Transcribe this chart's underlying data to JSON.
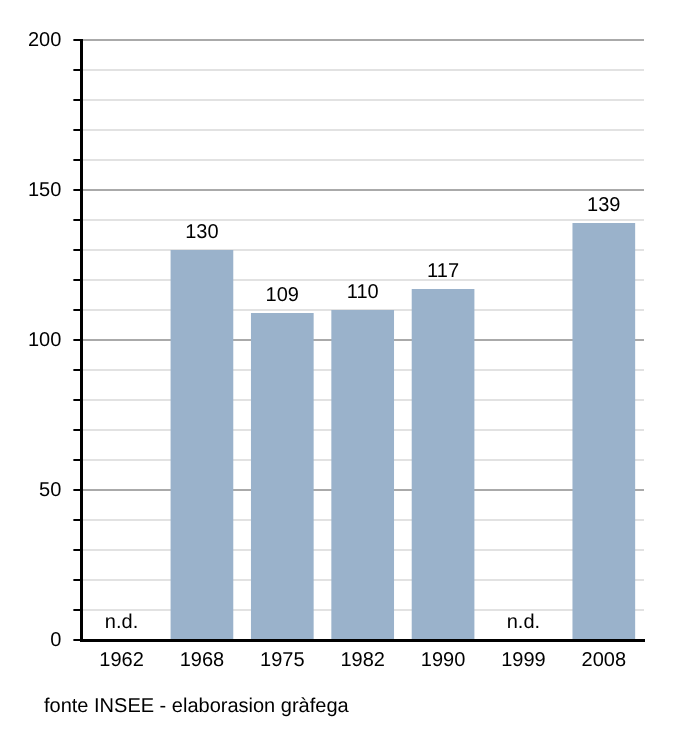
{
  "chart_data": {
    "type": "bar",
    "categories": [
      "1962",
      "1968",
      "1975",
      "1982",
      "1990",
      "1999",
      "2008"
    ],
    "values": [
      null,
      130,
      109,
      110,
      117,
      null,
      139
    ],
    "value_labels": [
      "n.d.",
      "130",
      "109",
      "110",
      "117",
      "n.d.",
      "139"
    ],
    "color": "#9ab2cb",
    "ylim": [
      0,
      200
    ],
    "yticks": [
      0,
      {
        "value": 10,
        "label": null
      },
      {
        "value": 20,
        "label": null
      },
      {
        "value": 30,
        "label": null
      },
      {
        "value": 40,
        "label": null
      },
      50,
      {
        "value": 60,
        "label": null
      },
      {
        "value": 70,
        "label": null
      },
      {
        "value": 80,
        "label": null
      },
      {
        "value": 90,
        "label": null
      },
      100,
      {
        "value": 110,
        "label": null
      },
      {
        "value": 120,
        "label": null
      },
      {
        "value": 130,
        "label": null
      },
      {
        "value": 140,
        "label": null
      },
      150,
      {
        "value": 160,
        "label": null
      },
      {
        "value": 170,
        "label": null
      },
      {
        "value": 180,
        "label": null
      },
      {
        "value": 190,
        "label": null
      },
      200
    ],
    "grid": "y",
    "legend": false,
    "annotations": [
      "fonte INSEE - elaborasion gràfega"
    ]
  }
}
